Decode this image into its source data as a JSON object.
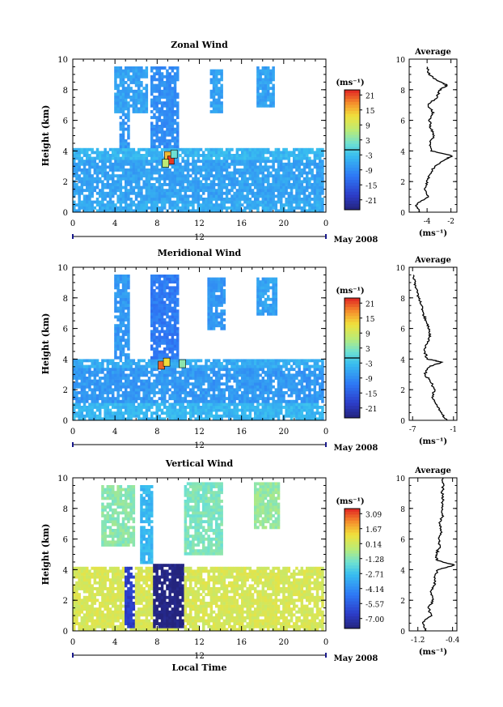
{
  "panels": [
    {
      "title": "Zonal Wind",
      "ylabel": "Height (km)",
      "yticks": [
        "0",
        "2",
        "4",
        "6",
        "8",
        "10"
      ],
      "xticks": [
        "0",
        "4",
        "8",
        "12",
        "16",
        "20",
        "0"
      ],
      "date_label": "12",
      "month_label": "May 2008",
      "colorbar": {
        "unit": "(ms⁻¹)",
        "ticks": [
          "21",
          "15",
          "9",
          "3",
          "-3",
          "-9",
          "-15",
          "-21"
        ]
      },
      "avg": {
        "title": "Average",
        "xticks": [
          "-4",
          "-2"
        ],
        "yticks": [
          "0",
          "2",
          "4",
          "6",
          "8",
          "10"
        ],
        "xlabel": "(ms⁻¹)"
      }
    },
    {
      "title": "Meridional Wind",
      "ylabel": "Height (km)",
      "yticks": [
        "0",
        "2",
        "4",
        "6",
        "8",
        "10"
      ],
      "xticks": [
        "0",
        "4",
        "8",
        "12",
        "16",
        "20",
        "0"
      ],
      "date_label": "12",
      "month_label": "May 2008",
      "colorbar": {
        "unit": "(ms⁻¹)",
        "ticks": [
          "21",
          "15",
          "9",
          "3",
          "-3",
          "-9",
          "-15",
          "-21"
        ]
      },
      "avg": {
        "title": "Average",
        "xticks": [
          "-7",
          "-1"
        ],
        "yticks": [
          "0",
          "2",
          "4",
          "6",
          "8",
          "10"
        ],
        "xlabel": "(ms⁻¹)"
      }
    },
    {
      "title": "Vertical Wind",
      "ylabel": "Height (km)",
      "yticks": [
        "0",
        "2",
        "4",
        "6",
        "8",
        "10"
      ],
      "xticks": [
        "0",
        "4",
        "8",
        "12",
        "16",
        "20",
        "0"
      ],
      "date_label": "12",
      "month_label": "May 2008",
      "xlabel": "Local Time",
      "colorbar": {
        "unit": "(ms⁻¹)",
        "ticks": [
          "3.09",
          "1.67",
          "0.14",
          "-1.28",
          "-2.71",
          "-4.14",
          "-5.57",
          "-7.00"
        ]
      },
      "avg": {
        "title": "Average",
        "xticks": [
          "-1.2",
          "-0.4"
        ],
        "yticks": [
          "0",
          "2",
          "4",
          "6",
          "8",
          "10"
        ],
        "xlabel": "(ms⁻¹)"
      }
    }
  ],
  "chart_data": [
    {
      "type": "heatmap",
      "title": "Zonal Wind",
      "ylabel": "Height (km)",
      "xlim": [
        0,
        24
      ],
      "ylim": [
        0,
        10
      ],
      "color_range": [
        -21,
        21
      ],
      "bands": [
        {
          "t0": 4.4,
          "t1": 5.3,
          "h0": 0.3,
          "h1": 9.6,
          "v": -6
        },
        {
          "t0": 7.3,
          "t1": 10.1,
          "h0": 3.4,
          "h1": 9.6,
          "v": -7
        },
        {
          "t0": 4.0,
          "t1": 7.0,
          "h0": 6.5,
          "h1": 9.6,
          "v": -5
        },
        {
          "t0": 13.0,
          "t1": 14.2,
          "h0": 6.5,
          "h1": 9.4,
          "v": -5
        },
        {
          "t0": 17.3,
          "t1": 19.2,
          "h0": 6.8,
          "h1": 9.5,
          "v": -5
        },
        {
          "t0": 0.0,
          "t1": 24.0,
          "h0": 0.8,
          "h1": 3.5,
          "v": -5
        },
        {
          "t0": 0.0,
          "t1": 24.0,
          "h0": 3.5,
          "h1": 4.2,
          "v": -3
        },
        {
          "t0": 0.0,
          "t1": 24.0,
          "h0": 0.0,
          "h1": 0.8,
          "v": -4
        }
      ],
      "features": [
        {
          "t": 9.0,
          "h": 3.7,
          "v": 14
        },
        {
          "t": 9.3,
          "h": 3.4,
          "v": 20
        },
        {
          "t": 8.8,
          "h": 3.2,
          "v": 7
        },
        {
          "t": 9.6,
          "h": 3.8,
          "v": 2
        }
      ],
      "average_profile": {
        "xlim": [
          -5.5,
          -1.5
        ],
        "height": [
          0.0,
          0.5,
          1.0,
          1.5,
          2.0,
          2.5,
          3.0,
          3.5,
          3.7,
          4.0,
          4.5,
          5.0,
          5.5,
          6.0,
          6.5,
          7.0,
          7.5,
          8.0,
          8.3,
          8.6,
          9.0,
          9.5
        ],
        "value": [
          -4.6,
          -4.9,
          -3.9,
          -4.2,
          -4.0,
          -3.7,
          -3.4,
          -2.3,
          -1.9,
          -3.6,
          -3.8,
          -3.4,
          -3.7,
          -3.8,
          -3.5,
          -3.9,
          -3.2,
          -2.9,
          -2.3,
          -3.2,
          -3.8,
          -4.0
        ]
      }
    },
    {
      "type": "heatmap",
      "title": "Meridional Wind",
      "ylabel": "Height (km)",
      "xlim": [
        0,
        24
      ],
      "ylim": [
        0,
        10
      ],
      "color_range": [
        -21,
        21
      ],
      "bands": [
        {
          "t0": 4.0,
          "t1": 5.5,
          "h0": 0.0,
          "h1": 9.6,
          "v": -6
        },
        {
          "t0": 7.3,
          "t1": 10.0,
          "h0": 3.4,
          "h1": 9.6,
          "v": -9
        },
        {
          "t0": 12.7,
          "t1": 14.4,
          "h0": 6.0,
          "h1": 9.4,
          "v": -6
        },
        {
          "t0": 17.3,
          "t1": 19.3,
          "h0": 6.8,
          "h1": 9.4,
          "v": -5
        },
        {
          "t0": 0.0,
          "t1": 24.0,
          "h0": 1.2,
          "h1": 3.4,
          "v": -6
        },
        {
          "t0": 0.0,
          "t1": 24.0,
          "h0": 0.0,
          "h1": 1.2,
          "v": -3
        },
        {
          "t0": 0.0,
          "t1": 24.0,
          "h0": 3.4,
          "h1": 4.0,
          "v": -4
        }
      ],
      "features": [
        {
          "t": 8.4,
          "h": 3.6,
          "v": 18
        },
        {
          "t": 8.9,
          "h": 3.8,
          "v": 12
        },
        {
          "t": 10.4,
          "h": 3.7,
          "v": 4
        }
      ],
      "average_profile": {
        "xlim": [
          -7.5,
          -0.5
        ],
        "height": [
          0.0,
          0.5,
          1.0,
          1.5,
          2.0,
          2.5,
          3.0,
          3.5,
          3.8,
          4.0,
          4.5,
          5.0,
          5.5,
          6.0,
          6.5,
          7.0,
          7.5,
          8.0,
          8.5,
          9.0,
          9.5
        ],
        "value": [
          -2.0,
          -2.8,
          -3.5,
          -4.0,
          -3.8,
          -4.3,
          -5.2,
          -4.6,
          -2.6,
          -4.8,
          -5.3,
          -4.9,
          -4.4,
          -4.7,
          -5.0,
          -5.5,
          -5.7,
          -6.1,
          -6.4,
          -6.7,
          -6.9
        ]
      }
    },
    {
      "type": "heatmap",
      "title": "Vertical Wind",
      "xlabel": "Local Time",
      "ylabel": "Height (km)",
      "xlim": [
        0,
        24
      ],
      "ylim": [
        0,
        10
      ],
      "color_range": [
        -7.0,
        3.09
      ],
      "bands": [
        {
          "t0": 0.0,
          "t1": 24.0,
          "h0": 0.0,
          "h1": 4.2,
          "v": 0.3
        },
        {
          "t0": 5.0,
          "t1": 6.0,
          "h0": 0.2,
          "h1": 4.2,
          "v": -5.8
        },
        {
          "t0": 7.7,
          "t1": 10.5,
          "h0": 0.2,
          "h1": 4.3,
          "v": -7.0
        },
        {
          "t0": 2.6,
          "t1": 5.8,
          "h0": 5.5,
          "h1": 9.6,
          "v": -1.0
        },
        {
          "t0": 6.3,
          "t1": 7.7,
          "h0": 4.4,
          "h1": 9.6,
          "v": -2.6
        },
        {
          "t0": 10.5,
          "t1": 14.2,
          "h0": 5.0,
          "h1": 9.7,
          "v": -1.2
        },
        {
          "t0": 17.2,
          "t1": 19.7,
          "h0": 6.6,
          "h1": 9.8,
          "v": -0.8
        }
      ],
      "features": [],
      "average_profile": {
        "xlim": [
          -1.4,
          -0.3
        ],
        "height": [
          0.0,
          0.5,
          1.0,
          1.5,
          2.0,
          2.5,
          3.0,
          3.5,
          4.0,
          4.3,
          4.6,
          5.0,
          5.5,
          6.0,
          6.5,
          7.0,
          7.5,
          8.0,
          8.5,
          9.0,
          9.5,
          10.0
        ],
        "value": [
          -1.0,
          -1.1,
          -0.9,
          -0.95,
          -0.85,
          -0.9,
          -0.82,
          -0.8,
          -0.75,
          -0.35,
          -0.75,
          -0.78,
          -0.7,
          -0.72,
          -0.66,
          -0.7,
          -0.63,
          -0.65,
          -0.62,
          -0.64,
          -0.62,
          -0.62
        ]
      }
    }
  ]
}
